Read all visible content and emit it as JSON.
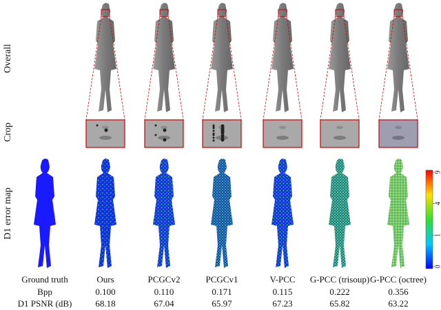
{
  "row_labels": [
    "Overall",
    "Crop",
    "D1 error map"
  ],
  "table": {
    "header": [
      "Ground truth",
      "Ours",
      "PCGCv2",
      "PCGCv1",
      "V-PCC",
      "G-PCC (trisoup)",
      "G-PCC (octree)"
    ],
    "rows": [
      [
        "Bpp",
        "0.100",
        "0.110",
        "0.171",
        "0.115",
        "0.222",
        "0.356"
      ],
      [
        "D1 PSNR (dB)",
        "68.18",
        "67.04",
        "65.97",
        "67.23",
        "65.82",
        "63.22"
      ]
    ]
  },
  "colorbar": {
    "ticks": [
      0,
      1,
      4,
      9
    ]
  }
}
